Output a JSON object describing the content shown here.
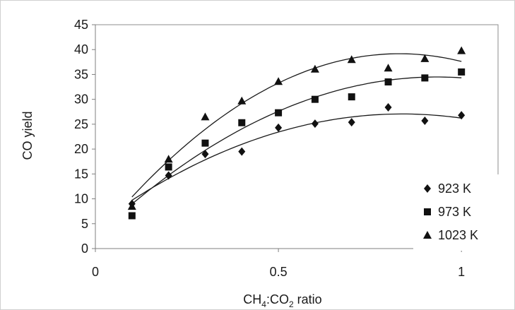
{
  "chart_data": {
    "type": "scatter",
    "title": "",
    "xlabel": {
      "base": "CH",
      "sub1": "4",
      "mid": ":CO",
      "sub2": "2",
      "tail": " ratio"
    },
    "ylabel": "CO yield",
    "xlim": [
      0,
      1.1
    ],
    "ylim": [
      0,
      45
    ],
    "x_ticks": [
      0,
      0.5,
      1
    ],
    "x_tick_labels": [
      "0",
      "0.5",
      "1"
    ],
    "y_ticks": [
      0,
      5,
      10,
      15,
      20,
      25,
      30,
      35,
      40,
      45
    ],
    "y_tick_labels": [
      "0",
      "5",
      "10",
      "15",
      "20",
      "25",
      "30",
      "35",
      "40",
      "45"
    ],
    "grid": false,
    "legend_position": "bottom-right",
    "trendlines": "polynomial",
    "series": [
      {
        "name": "923 K",
        "marker": "diamond",
        "x": [
          0.1,
          0.2,
          0.3,
          0.4,
          0.5,
          0.6,
          0.7,
          0.8,
          0.9,
          1.0
        ],
        "y": [
          9.0,
          14.7,
          19.0,
          19.5,
          24.3,
          25.1,
          25.4,
          28.4,
          25.7,
          26.8
        ]
      },
      {
        "name": "973 K",
        "marker": "square",
        "x": [
          0.1,
          0.2,
          0.3,
          0.4,
          0.5,
          0.6,
          0.7,
          0.8,
          0.9,
          1.0
        ],
        "y": [
          6.6,
          16.4,
          21.2,
          25.3,
          27.3,
          30.0,
          30.5,
          33.5,
          34.3,
          35.5
        ]
      },
      {
        "name": "1023 K",
        "marker": "triangle",
        "x": [
          0.1,
          0.2,
          0.3,
          0.4,
          0.5,
          0.6,
          0.7,
          0.8,
          0.9,
          1.0
        ],
        "y": [
          8.5,
          18.0,
          26.5,
          29.7,
          33.6,
          36.1,
          38.0,
          36.3,
          38.2,
          39.8
        ]
      }
    ]
  }
}
